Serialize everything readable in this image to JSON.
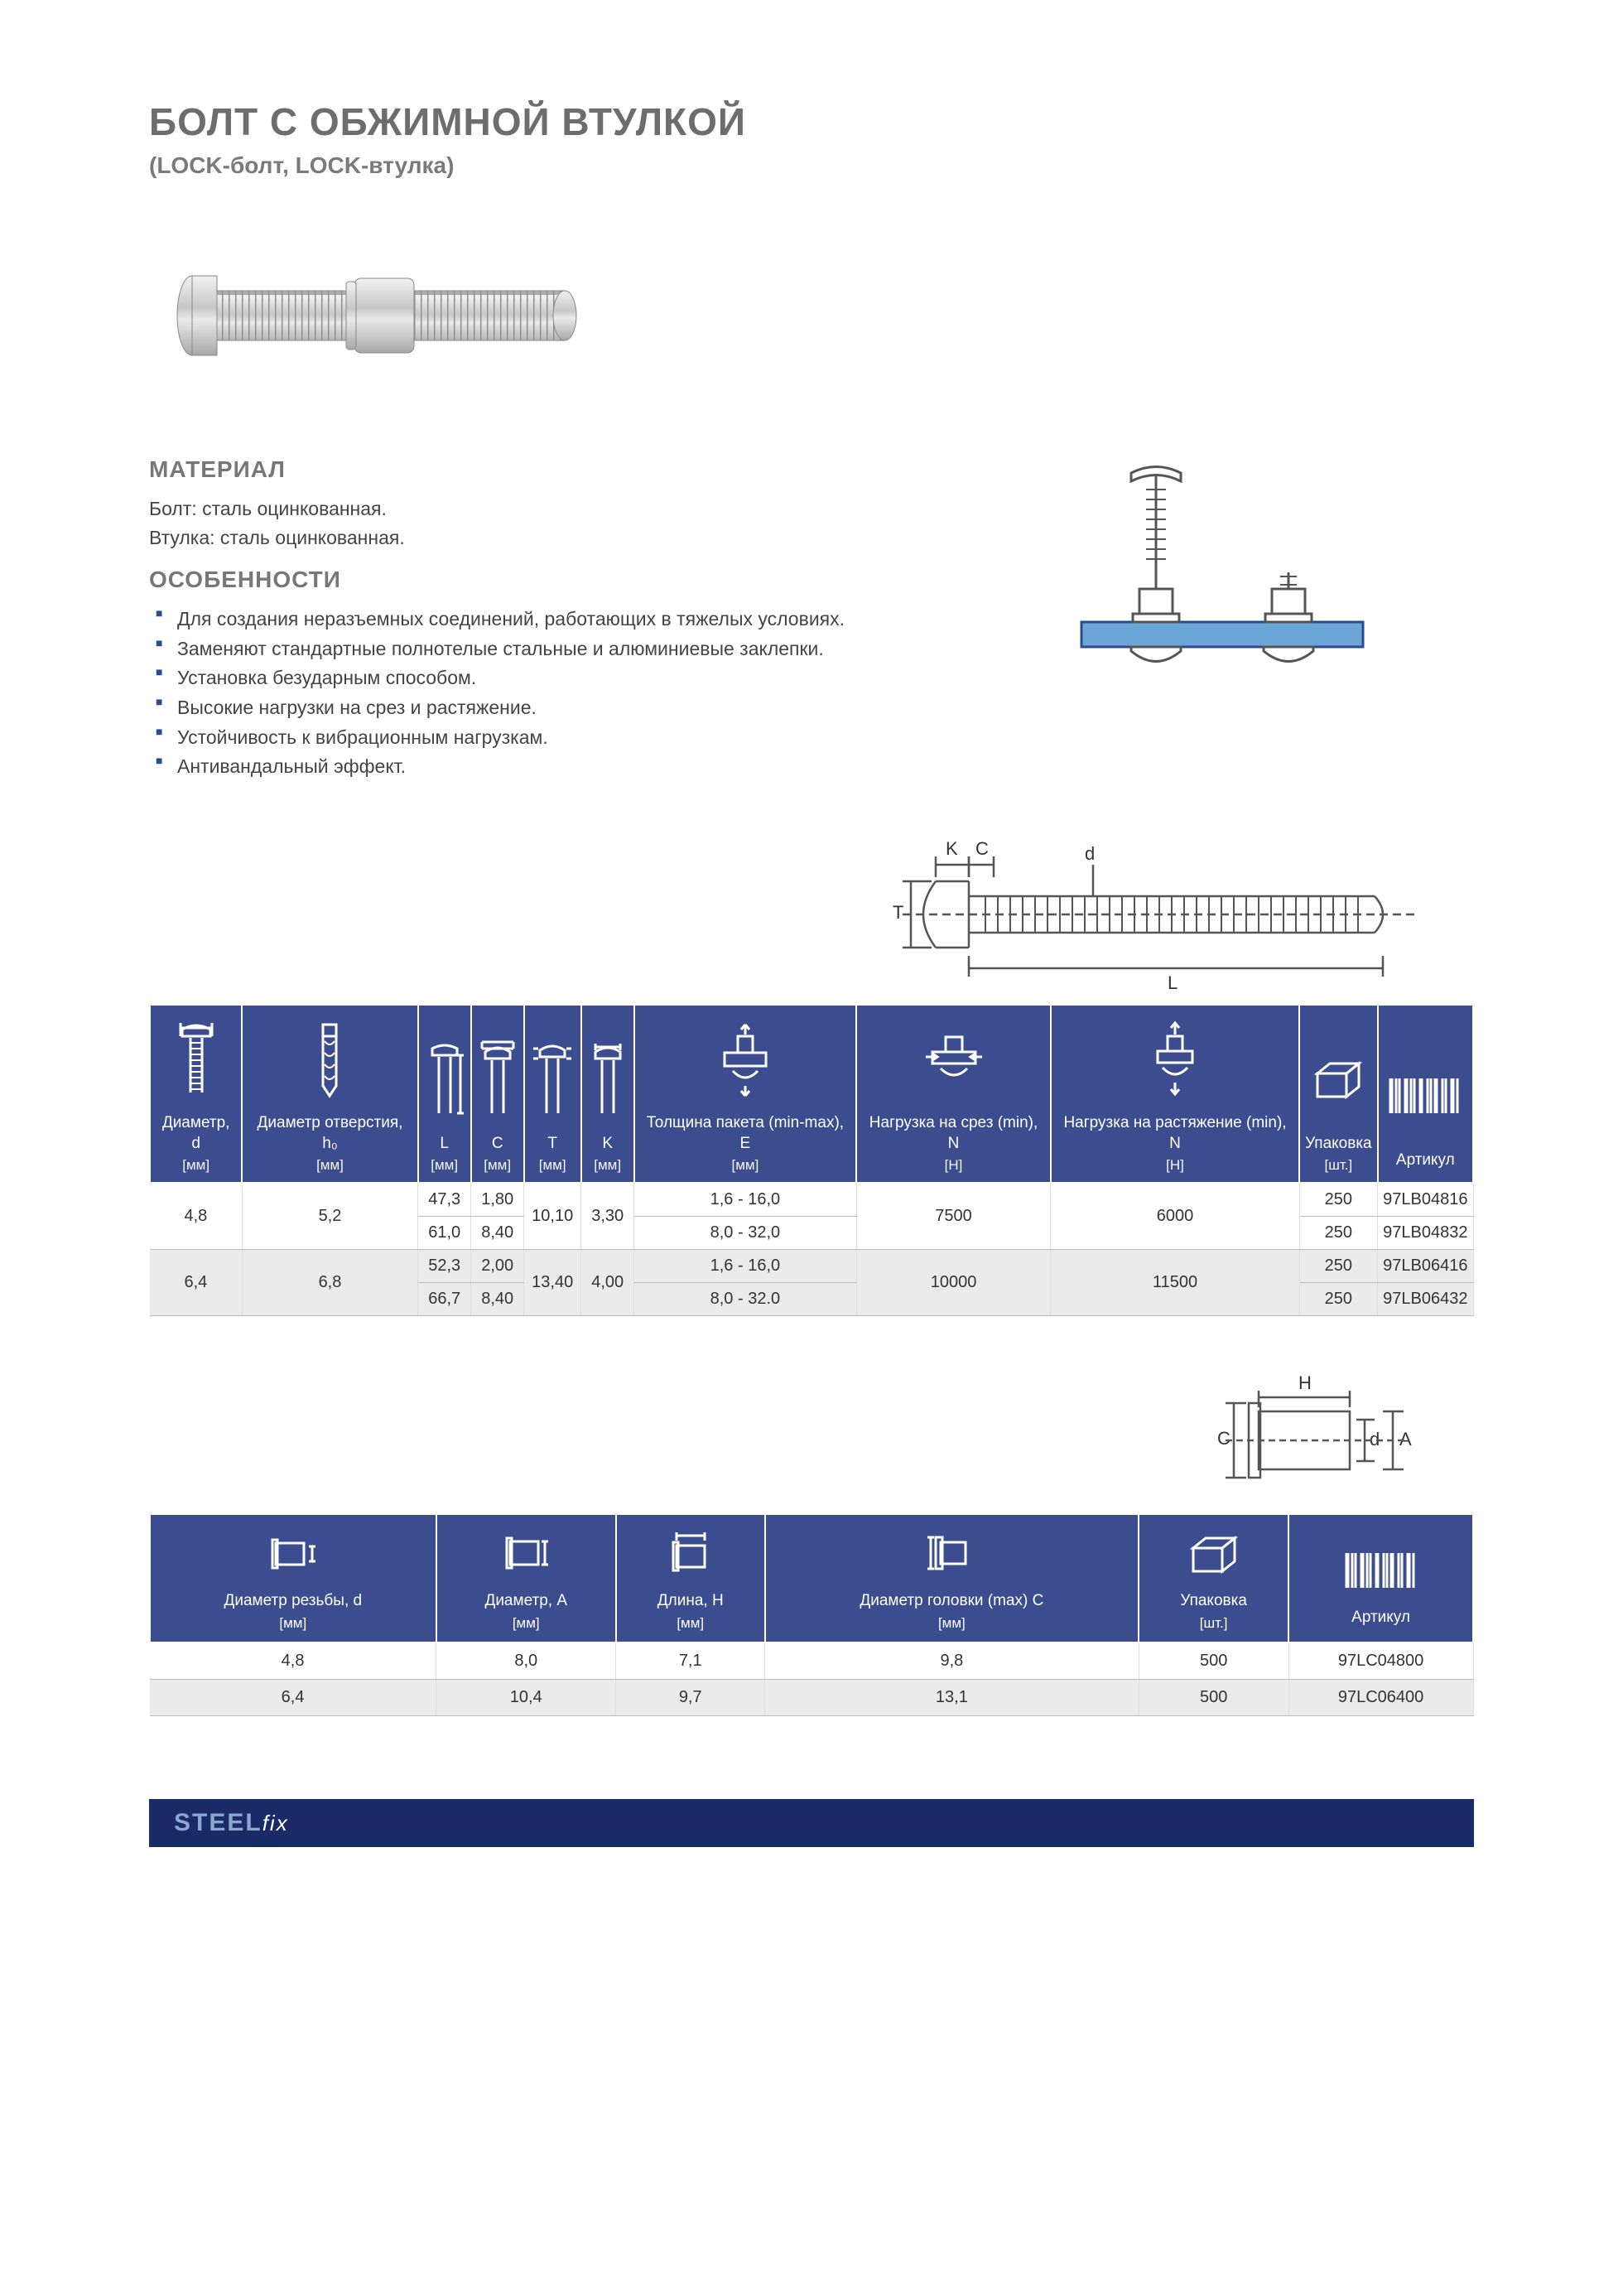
{
  "colors": {
    "heading": "#6d6d6d",
    "subheading": "#7a7a7a",
    "body_text": "#444444",
    "bullet_accent": "#2c4a8f",
    "table_header_bg": "#3c4d8f",
    "table_header_text": "#ffffff",
    "table_row_alt_bg": "#ebebeb",
    "table_border": "#bbbbbb",
    "footer_bg": "#1a2a66",
    "brand_steel": "#8aa7d1",
    "brand_fix": "#ffffff",
    "diagram_stroke": "#555555",
    "diagram_plate": "#6aa7d6"
  },
  "title": "БОЛТ С ОБЖИМНОЙ ВТУЛКОЙ",
  "subtitle": "(LOCK-болт, LOCK-втулка)",
  "material_heading": "МАТЕРИАЛ",
  "material_lines": [
    "Болт: сталь оцинкованная.",
    "Втулка: сталь оцинкованная."
  ],
  "features_heading": "ОСОБЕННОСТИ",
  "features": [
    "Для создания неразъемных соединений, работающих в тяжелых условиях.",
    "Заменяют стандартные полнотелые стальные и алюминиевые заклепки.",
    "Установка безударным способом.",
    "Высокие нагрузки на срез и растяжение.",
    "Устойчивость к вибрационным нагрузкам.",
    "Антивандальный эффект."
  ],
  "dimension_labels": {
    "K": "K",
    "C": "C",
    "T": "T",
    "d": "d",
    "L": "L"
  },
  "table1": {
    "columns": [
      {
        "label": "Диаметр, d",
        "unit": "[мм]",
        "icon": "bolt-d"
      },
      {
        "label": "Диаметр отверстия, h₀",
        "unit": "[мм]",
        "icon": "drill"
      },
      {
        "label": "L",
        "unit": "[мм]",
        "icon": "bolt-L"
      },
      {
        "label": "C",
        "unit": "[мм]",
        "icon": "bolt-C"
      },
      {
        "label": "T",
        "unit": "[мм]",
        "icon": "bolt-T"
      },
      {
        "label": "K",
        "unit": "[мм]",
        "icon": "bolt-K"
      },
      {
        "label": "Толщина пакета (min-max), E",
        "unit": "[мм]",
        "icon": "grip"
      },
      {
        "label": "Нагрузка на срез (min), N",
        "unit": "[H]",
        "icon": "shear"
      },
      {
        "label": "Нагрузка на растяжение (min), N",
        "unit": "[H]",
        "icon": "tension"
      },
      {
        "label": "Упаковка",
        "unit": "[шт.]",
        "icon": "box"
      },
      {
        "label": "Артикул",
        "unit": "",
        "icon": "barcode"
      }
    ],
    "groups": [
      {
        "d": "4,8",
        "h0": "5,2",
        "T": "10,10",
        "K": "3,30",
        "shear": "7500",
        "tension": "6000",
        "rows": [
          {
            "L": "47,3",
            "C": "1,80",
            "E": "1,6 - 16,0",
            "pack": "250",
            "art": "97LB04816"
          },
          {
            "L": "61,0",
            "C": "8,40",
            "E": "8,0 - 32,0",
            "pack": "250",
            "art": "97LB04832"
          }
        ]
      },
      {
        "d": "6,4",
        "h0": "6,8",
        "T": "13,40",
        "K": "4,00",
        "shear": "10000",
        "tension": "11500",
        "rows": [
          {
            "L": "52,3",
            "C": "2,00",
            "E": "1,6 - 16,0",
            "pack": "250",
            "art": "97LB06416"
          },
          {
            "L": "66,7",
            "C": "8,40",
            "E": "8,0 - 32.0",
            "pack": "250",
            "art": "97LB06432"
          }
        ]
      }
    ]
  },
  "sleeve_labels": {
    "H": "H",
    "C": "C",
    "d": "d",
    "A": "A"
  },
  "table2": {
    "columns": [
      {
        "label": "Диаметр резьбы, d",
        "unit": "[мм]",
        "icon": "sleeve-d"
      },
      {
        "label": "Диаметр, A",
        "unit": "[мм]",
        "icon": "sleeve-A"
      },
      {
        "label": "Длина, H",
        "unit": "[мм]",
        "icon": "sleeve-H"
      },
      {
        "label": "Диаметр головки (max) C",
        "unit": "[мм]",
        "icon": "sleeve-C"
      },
      {
        "label": "Упаковка",
        "unit": "[шт.]",
        "icon": "box"
      },
      {
        "label": "Артикул",
        "unit": "",
        "icon": "barcode"
      }
    ],
    "rows": [
      {
        "d": "4,8",
        "A": "8,0",
        "H": "7,1",
        "C": "9,8",
        "pack": "500",
        "art": "97LC04800"
      },
      {
        "d": "6,4",
        "A": "10,4",
        "H": "9,7",
        "C": "13,1",
        "pack": "500",
        "art": "97LC06400"
      }
    ]
  },
  "brand": {
    "steel": "STEEL",
    "fix": "fix"
  }
}
